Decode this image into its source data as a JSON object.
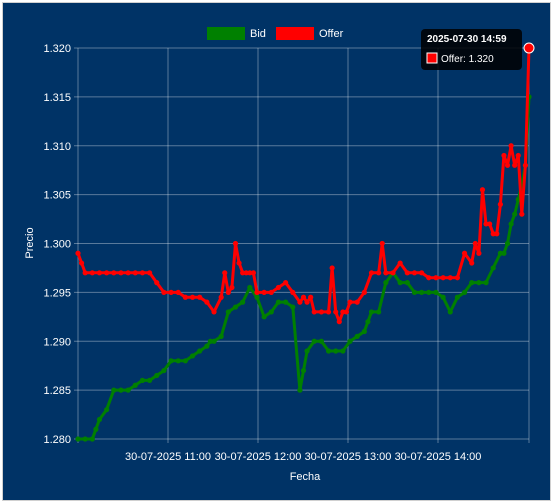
{
  "chart_data": {
    "type": "line",
    "xlabel": "Fecha",
    "ylabel": "Precio",
    "ylim": [
      1.28,
      1.32
    ],
    "yticks": [
      "1.280",
      "1.285",
      "1.290",
      "1.295",
      "1.300",
      "1.305",
      "1.310",
      "1.315",
      "1.320"
    ],
    "xtick_labels": [
      "30-07-2025 11:00",
      "30-07-2025 12:00",
      "30-07-2025 13:00",
      "30-07-2025 14:00"
    ],
    "legend": {
      "position": "top",
      "entries": [
        "Bid",
        "Offer"
      ]
    },
    "grid": true,
    "colors": {
      "background": "#003366",
      "bid": "#008000",
      "offer": "#ff0000",
      "grid": "rgba(255,255,255,0.35)",
      "text": "#ffffff"
    },
    "tooltip": {
      "title": "2025-07-30 14:59",
      "label": "Offer: 1.320"
    },
    "series": [
      {
        "name": "Bid",
        "color": "#008000",
        "x": [
          0,
          2,
          4,
          5,
          6,
          8,
          10,
          12,
          14,
          16,
          18,
          20,
          22,
          24,
          26,
          28,
          30,
          32,
          34,
          36,
          37,
          38,
          40,
          42,
          44,
          46,
          48,
          50,
          52,
          54,
          56,
          58,
          60,
          62,
          63,
          64,
          66,
          68,
          70,
          72,
          74,
          76,
          78,
          80,
          81,
          82,
          84,
          86,
          88,
          90,
          92,
          94,
          96,
          98,
          100,
          102,
          104,
          106,
          108,
          110,
          112,
          114,
          116,
          118,
          119,
          120,
          121,
          122,
          123,
          124,
          125,
          126
        ],
        "values": [
          1.28,
          1.28,
          1.28,
          1.281,
          1.282,
          1.283,
          1.285,
          1.285,
          1.285,
          1.2855,
          1.286,
          1.286,
          1.2865,
          1.287,
          1.288,
          1.288,
          1.288,
          1.2885,
          1.289,
          1.2895,
          1.29,
          1.29,
          1.2905,
          1.293,
          1.2935,
          1.294,
          1.2955,
          1.2945,
          1.2925,
          1.293,
          1.294,
          1.294,
          1.2935,
          1.285,
          1.287,
          1.289,
          1.29,
          1.29,
          1.289,
          1.289,
          1.289,
          1.29,
          1.2905,
          1.291,
          1.292,
          1.293,
          1.293,
          1.296,
          1.297,
          1.296,
          1.296,
          1.295,
          1.295,
          1.295,
          1.295,
          1.2945,
          1.293,
          1.2945,
          1.295,
          1.296,
          1.296,
          1.296,
          1.2975,
          1.299,
          1.299,
          1.3,
          1.302,
          1.303,
          1.3045,
          1.306,
          1.308,
          1.315
        ]
      },
      {
        "name": "Offer",
        "color": "#ff0000",
        "x": [
          0,
          1,
          2,
          4,
          6,
          8,
          10,
          12,
          14,
          16,
          18,
          20,
          22,
          24,
          26,
          28,
          30,
          32,
          34,
          36,
          38,
          40,
          41,
          42,
          43,
          44,
          45,
          46,
          47,
          48,
          49,
          50,
          52,
          54,
          56,
          58,
          60,
          62,
          63,
          64,
          65,
          66,
          68,
          70,
          71,
          72,
          73,
          74,
          75,
          76,
          78,
          80,
          82,
          84,
          85,
          86,
          88,
          90,
          92,
          94,
          96,
          98,
          100,
          102,
          104,
          106,
          108,
          110,
          111,
          112,
          113,
          114,
          115,
          116,
          117,
          118,
          119,
          120,
          121,
          122,
          123,
          124,
          125,
          126
        ],
        "values": [
          1.299,
          1.298,
          1.297,
          1.297,
          1.297,
          1.297,
          1.297,
          1.297,
          1.297,
          1.297,
          1.297,
          1.297,
          1.296,
          1.295,
          1.295,
          1.295,
          1.2945,
          1.2945,
          1.2945,
          1.294,
          1.293,
          1.2945,
          1.297,
          1.295,
          1.2955,
          1.3,
          1.298,
          1.297,
          1.297,
          1.297,
          1.297,
          1.295,
          1.295,
          1.295,
          1.2955,
          1.296,
          1.295,
          1.294,
          1.2945,
          1.294,
          1.2945,
          1.293,
          1.293,
          1.293,
          1.2975,
          1.293,
          1.292,
          1.293,
          1.293,
          1.294,
          1.294,
          1.295,
          1.297,
          1.297,
          1.3,
          1.297,
          1.297,
          1.298,
          1.297,
          1.297,
          1.297,
          1.2965,
          1.2965,
          1.2965,
          1.2965,
          1.2965,
          1.299,
          1.298,
          1.3,
          1.299,
          1.3055,
          1.302,
          1.302,
          1.301,
          1.301,
          1.304,
          1.309,
          1.308,
          1.31,
          1.308,
          1.309,
          1.303,
          1.308,
          1.32
        ]
      }
    ]
  }
}
